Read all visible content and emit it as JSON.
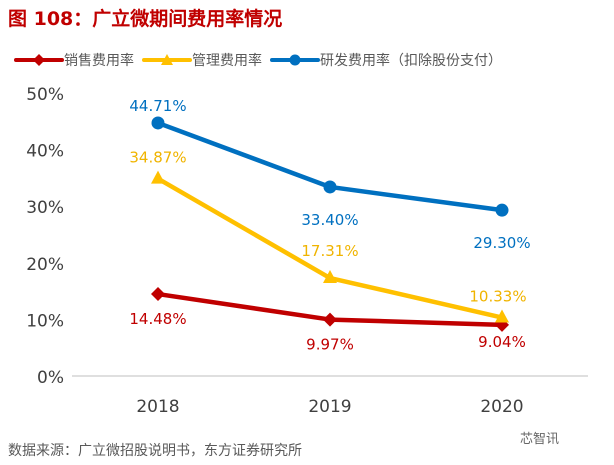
{
  "title": "图 108：广立微期间费用率情况",
  "source": "数据来源：广立微招股说明书，东方证券研究所",
  "watermark": "芯智讯",
  "chart_data": {
    "type": "line",
    "categories": [
      "2018",
      "2019",
      "2020"
    ],
    "ylim": [
      0,
      50
    ],
    "yticks": [
      "0%",
      "10%",
      "20%",
      "30%",
      "40%",
      "50%"
    ],
    "ytick_values": [
      0,
      10,
      20,
      30,
      40,
      50
    ],
    "grid": false,
    "legend_position": "top",
    "series": [
      {
        "name": "销售费用率",
        "color": "#c00000",
        "marker": "diamond",
        "values": [
          14.48,
          9.97,
          9.04
        ],
        "labels": [
          "14.48%",
          "9.97%",
          "9.04%"
        ]
      },
      {
        "name": "管理费用率",
        "color": "#ffc000",
        "marker": "triangle",
        "values": [
          34.87,
          17.31,
          10.33
        ],
        "labels": [
          "34.87%",
          "17.31%",
          "10.33%"
        ]
      },
      {
        "name": "研发费用率（扣除股份支付）",
        "color": "#0070c0",
        "marker": "circle",
        "values": [
          44.71,
          33.4,
          29.3
        ],
        "labels": [
          "44.71%",
          "33.40%",
          "29.30%"
        ]
      }
    ]
  }
}
